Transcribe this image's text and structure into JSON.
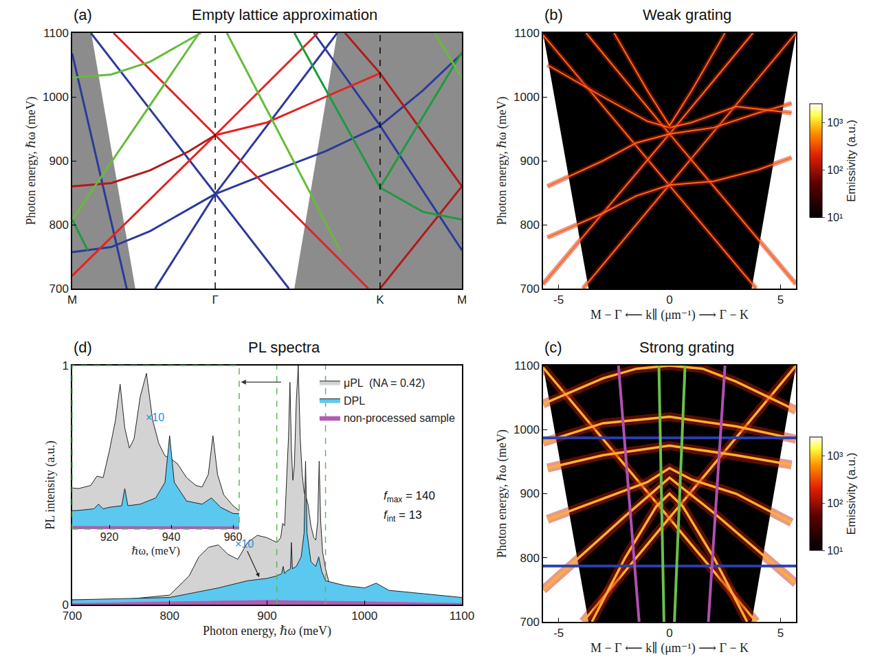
{
  "chart_data": [
    {
      "type": "line",
      "panel": "(a)",
      "title": "Empty lattice approximation",
      "ylabel": "Photon energy, ℏω (meV)",
      "xlim": [
        0,
        1
      ],
      "xticks": [
        {
          "value": 0,
          "label": "M"
        },
        {
          "value": 0.367,
          "label": "Γ"
        },
        {
          "value": 0.79,
          "label": "K"
        },
        {
          "value": 1,
          "label": "M"
        }
      ],
      "ylim": [
        700,
        1100
      ],
      "yticks": [
        700,
        800,
        900,
        1000,
        1100
      ],
      "grid": false,
      "vlines": [
        0.367,
        0.79
      ],
      "line_style": "dashed",
      "shaded_regions": [
        {
          "color": "#8c8c8c",
          "x": [
            0,
            0.049,
            0.162,
            0
          ],
          "values": [
            1100,
            1100,
            700,
            700
          ]
        },
        {
          "color": "#8c8c8c",
          "x": [
            0.68,
            1,
            1,
            0.57
          ],
          "values": [
            1100,
            1100,
            700,
            700
          ]
        }
      ],
      "series": [
        {
          "color": "#2b3a9a",
          "x": [
            0.048,
            0.367,
            0.556
          ],
          "values": [
            1100,
            848,
            700
          ]
        },
        {
          "color": "#2b3a9a",
          "x": [
            0.213,
            0.367,
            0.68
          ],
          "values": [
            700,
            848,
            1100
          ]
        },
        {
          "color": "#2b3a9a",
          "x": [
            0,
            0.1,
            0.2,
            0.3,
            0.367
          ],
          "values": [
            757,
            765,
            790,
            825,
            848
          ]
        },
        {
          "color": "#2b3a9a",
          "x": [
            0.367,
            0.5,
            0.65,
            0.79,
            0.9,
            1
          ],
          "values": [
            848,
            880,
            915,
            955,
            1010,
            1068
          ]
        },
        {
          "color": "#2b3a9a",
          "x": [
            0.62,
            0.79,
            1
          ],
          "values": [
            1100,
            955,
            760
          ]
        },
        {
          "color": "#2b3a9a",
          "x": [
            0,
            0.14
          ],
          "values": [
            1068,
            700
          ]
        },
        {
          "color": "#e52222",
          "x": [
            0.106,
            0.367,
            0.76
          ],
          "values": [
            1100,
            940,
            700
          ]
        },
        {
          "color": "#e52222",
          "x": [
            0.63,
            0.367,
            0
          ],
          "values": [
            1100,
            940,
            720
          ]
        },
        {
          "color": "#e52222",
          "x": [
            0.367,
            0.5,
            0.65,
            0.79
          ],
          "values": [
            940,
            960,
            1000,
            1037
          ]
        },
        {
          "color": "#b01a1a",
          "x": [
            0,
            0.1,
            0.2,
            0.3,
            0.367
          ],
          "values": [
            860,
            865,
            885,
            915,
            940
          ]
        },
        {
          "color": "#b01a1a",
          "x": [
            0.7,
            0.79,
            1
          ],
          "values": [
            1100,
            1037,
            860
          ]
        },
        {
          "color": "#b01a1a",
          "x": [
            0.79,
            1
          ],
          "values": [
            700,
            860
          ]
        },
        {
          "color": "#66bb3a",
          "x": [
            0,
            0.1,
            0.2,
            0.33
          ],
          "values": [
            1030,
            1035,
            1055,
            1100
          ]
        },
        {
          "color": "#66bb3a",
          "x": [
            0,
            0.326
          ],
          "values": [
            808,
            1100
          ]
        },
        {
          "color": "#1f9a3f",
          "x": [
            0,
            0.04
          ],
          "values": [
            808,
            760
          ]
        },
        {
          "color": "#66bb3a",
          "x": [
            0.397,
            0.688
          ],
          "values": [
            1100,
            759
          ]
        },
        {
          "color": "#1f9a3f",
          "x": [
            0.79,
            0.9,
            1
          ],
          "values": [
            858,
            820,
            808
          ]
        },
        {
          "color": "#1f9a3f",
          "x": [
            0.57,
            0.79,
            1
          ],
          "values": [
            1100,
            858,
            1070
          ]
        },
        {
          "color": "#66bb3a",
          "x": [
            0.93,
            1
          ],
          "values": [
            1100,
            1030
          ]
        }
      ]
    },
    {
      "type": "line",
      "panel": "(b)",
      "title": "Weak grating",
      "xlabel": "M − Γ ⟵ k∥ (μm⁻¹) ⟶ Γ − K",
      "ylabel": "Photon energy, ℏω (meV)",
      "xlim": [
        -5.7,
        5.7
      ],
      "xticks": [
        -5,
        0,
        5
      ],
      "ylim": [
        700,
        1100
      ],
      "yticks": [
        700,
        800,
        900,
        1000,
        1100
      ],
      "grid": false,
      "light_cone": {
        "color": "#000000",
        "x": [
          -5.7,
          5.7,
          3.7,
          -3.65
        ],
        "values": [
          1100,
          1100,
          700,
          700
        ]
      },
      "colorbar": {
        "title": "Emissivity (a.u.)",
        "range": [
          10,
          2500
        ],
        "log": true,
        "ticks": [
          {
            "value": 10,
            "label": "10¹"
          },
          {
            "value": 100,
            "label": "10²"
          },
          {
            "value": 1000,
            "label": "10³"
          }
        ]
      },
      "series": [
        {
          "color": "#ff6a1a",
          "x": [
            -5.7,
            0,
            3.9
          ],
          "values": [
            1097,
            862,
            700
          ]
        },
        {
          "color": "#ff6a1a",
          "x": [
            -3.9,
            0,
            5.7
          ],
          "values": [
            700,
            862,
            1100
          ]
        },
        {
          "color": "#ff6a1a",
          "x": [
            -5.7,
            0,
            3.76
          ],
          "values": [
            707,
            942,
            1100
          ]
        },
        {
          "color": "#ff6a1a",
          "x": [
            -3.76,
            0,
            5.7
          ],
          "values": [
            1100,
            942,
            707
          ]
        },
        {
          "color": "#ff6a1a",
          "x": [
            -5.5,
            -3,
            -1.5,
            0,
            2,
            4,
            5.5
          ],
          "values": [
            780,
            818,
            845,
            862,
            868,
            886,
            905
          ]
        },
        {
          "color": "#ff6a1a",
          "x": [
            -5.5,
            -3,
            -1.5,
            0,
            2,
            4,
            5.5
          ],
          "values": [
            860,
            900,
            928,
            942,
            952,
            975,
            990
          ]
        },
        {
          "color": "#ff6a1a",
          "x": [
            -5.5,
            -3,
            -1,
            0,
            1,
            3,
            5.5
          ],
          "values": [
            1050,
            1000,
            962,
            952,
            960,
            985,
            975
          ]
        },
        {
          "color": "#ff6a1a",
          "x": [
            -2.5,
            -1,
            0,
            1,
            2.5
          ],
          "values": [
            1100,
            1010,
            955,
            1010,
            1100
          ]
        }
      ]
    },
    {
      "type": "line",
      "panel": "(c)",
      "title": "Strong grating",
      "xlabel": "M − Γ ⟵ k∥ (μm⁻¹) ⟶ Γ − K",
      "ylabel": "Photon energy, ℏω (meV)",
      "xlim": [
        -5.7,
        5.7
      ],
      "xticks": [
        -5,
        0,
        5
      ],
      "ylim": [
        700,
        1100
      ],
      "yticks": [
        700,
        800,
        900,
        1000,
        1100
      ],
      "grid": false,
      "light_cone": {
        "color": "#000000",
        "x": [
          -5.7,
          5.7,
          3.7,
          -3.65
        ],
        "values": [
          1100,
          1100,
          700,
          700
        ]
      },
      "colorbar": {
        "title": "Emissivity (a.u.)",
        "range": [
          10,
          2500
        ],
        "log": true,
        "ticks": [
          {
            "value": 10,
            "label": "10¹"
          },
          {
            "value": 100,
            "label": "10²"
          },
          {
            "value": 1000,
            "label": "10³"
          }
        ]
      },
      "series": [
        {
          "color": "#ffb030",
          "x": [
            -5.7,
            0,
            3.9
          ],
          "values": [
            1097,
            862,
            700
          ]
        },
        {
          "color": "#ffb030",
          "x": [
            -3.9,
            0,
            5.7
          ],
          "values": [
            700,
            862,
            1100
          ]
        },
        {
          "color": "#ffb030",
          "x": [
            -5.7,
            -2,
            0,
            2,
            5.7
          ],
          "values": [
            750,
            865,
            925,
            870,
            760
          ]
        },
        {
          "color": "#ffb030",
          "x": [
            -5.5,
            -3,
            -1,
            0,
            1,
            3,
            5.5
          ],
          "values": [
            860,
            892,
            918,
            940,
            922,
            900,
            855
          ]
        },
        {
          "color": "#ffb030",
          "x": [
            -5.7,
            -3,
            -1.5,
            0,
            1.5,
            3,
            5.7
          ],
          "values": [
            1040,
            1080,
            1095,
            1100,
            1095,
            1075,
            1030
          ]
        },
        {
          "color": "#ffb030",
          "x": [
            -5.7,
            -3,
            0,
            3,
            5.7
          ],
          "values": [
            980,
            1010,
            1020,
            1005,
            985
          ]
        },
        {
          "color": "#ffb030",
          "x": [
            -3.5,
            -2,
            -0.6,
            0,
            0.6,
            2,
            3.5
          ],
          "values": [
            700,
            800,
            880,
            900,
            880,
            800,
            700
          ]
        },
        {
          "color": "#ffb030",
          "x": [
            -5.5,
            -3,
            0,
            3,
            5.5
          ],
          "values": [
            940,
            960,
            975,
            960,
            945
          ]
        }
      ],
      "overlay_lines": [
        {
          "color": "#2b3fb0",
          "x": [
            -5.7,
            5.7
          ],
          "values": [
            987,
            987
          ]
        },
        {
          "color": "#2b3fb0",
          "x": [
            -5.7,
            5.7
          ],
          "values": [
            787,
            787
          ]
        },
        {
          "color": "#6cc04a",
          "x": [
            -0.48,
            -0.25
          ],
          "values": [
            1100,
            700
          ]
        },
        {
          "color": "#6cc04a",
          "x": [
            0.7,
            0.22
          ],
          "values": [
            1100,
            700
          ]
        },
        {
          "color": "#b050b0",
          "x": [
            -2.3,
            -1.37
          ],
          "values": [
            1100,
            700
          ]
        },
        {
          "color": "#b050b0",
          "x": [
            2.5,
            1.75
          ],
          "values": [
            1100,
            700
          ]
        }
      ]
    },
    {
      "type": "area",
      "panel": "(d)",
      "title": "PL spectra",
      "xlabel": "Photon energy, ℏω (meV)",
      "ylabel": "PL intensity (a.u.)",
      "xlim": [
        700,
        1100
      ],
      "xticks": [
        700,
        800,
        900,
        1000,
        1100
      ],
      "ylim": [
        0,
        1
      ],
      "yticks": [
        0,
        1
      ],
      "grid": false,
      "legend": "top right",
      "series": [
        {
          "name": "μPL  (NA = 0.42)",
          "color": "#d3d3d3",
          "x": [
            700,
            750,
            800,
            820,
            830,
            840,
            850,
            860,
            870,
            880,
            890,
            900,
            905,
            910,
            914,
            916,
            918,
            920,
            922,
            923.5,
            925,
            926.5,
            928,
            930,
            932,
            934,
            936,
            938,
            940,
            942,
            945,
            948,
            950,
            952,
            953.5,
            955,
            957,
            960,
            965,
            970,
            980,
            1000,
            1012,
            1020,
            1050,
            1100
          ],
          "values": [
            0.02,
            0.02,
            0.04,
            0.12,
            0.2,
            0.24,
            0.25,
            0.21,
            0.19,
            0.26,
            0.29,
            0.28,
            0.27,
            0.26,
            0.28,
            0.34,
            0.33,
            0.5,
            0.7,
            0.93,
            0.65,
            0.52,
            0.58,
            0.85,
            1.0,
            0.7,
            0.55,
            0.47,
            0.45,
            0.42,
            0.33,
            0.28,
            0.27,
            0.35,
            0.6,
            0.35,
            0.22,
            0.15,
            0.07,
            0.05,
            0.04,
            0.04,
            0.06,
            0.04,
            0.03,
            0.02
          ]
        },
        {
          "name": "DPL",
          "color": "#5bc8f0",
          "x": [
            700,
            800,
            850,
            880,
            900,
            910,
            915,
            916.5,
            918,
            920,
            924,
            925,
            926,
            930,
            935,
            938,
            939.5,
            941,
            945,
            950,
            953,
            954,
            956,
            960,
            980,
            1000,
            1012,
            1025,
            1050,
            1100
          ],
          "values": [
            0.02,
            0.03,
            0.07,
            0.1,
            0.11,
            0.12,
            0.13,
            0.16,
            0.13,
            0.14,
            0.15,
            0.26,
            0.15,
            0.16,
            0.2,
            0.3,
            0.6,
            0.3,
            0.18,
            0.16,
            0.2,
            0.18,
            0.14,
            0.1,
            0.08,
            0.07,
            0.09,
            0.06,
            0.05,
            0.03
          ]
        },
        {
          "name": "non-processed sample",
          "color": "#b05cb0",
          "x": [
            700,
            800,
            900,
            1000,
            1100
          ],
          "values": [
            0.005,
            0.012,
            0.018,
            0.012,
            0.005
          ]
        }
      ],
      "zoom_lines": {
        "color": "#5cb85c",
        "x": [
          910,
          960
        ]
      },
      "note": {
        "text": "×10",
        "color": "#2a8fd0"
      },
      "factors": [
        {
          "italic": "f",
          "subscript": "max",
          "equals": " = ",
          "value": 140
        },
        {
          "italic": "f",
          "subscript": "int",
          "equals": " = ",
          "value": 13
        }
      ],
      "inset": {
        "xlim": [
          908,
          962
        ],
        "xticks": [
          920,
          940,
          960
        ],
        "ylim": [
          0,
          1.05
        ],
        "xlabel": "ℏω, (meV)",
        "tick_labels": "x",
        "label": "×10",
        "label_color": "#2a8fd0"
      }
    }
  ]
}
